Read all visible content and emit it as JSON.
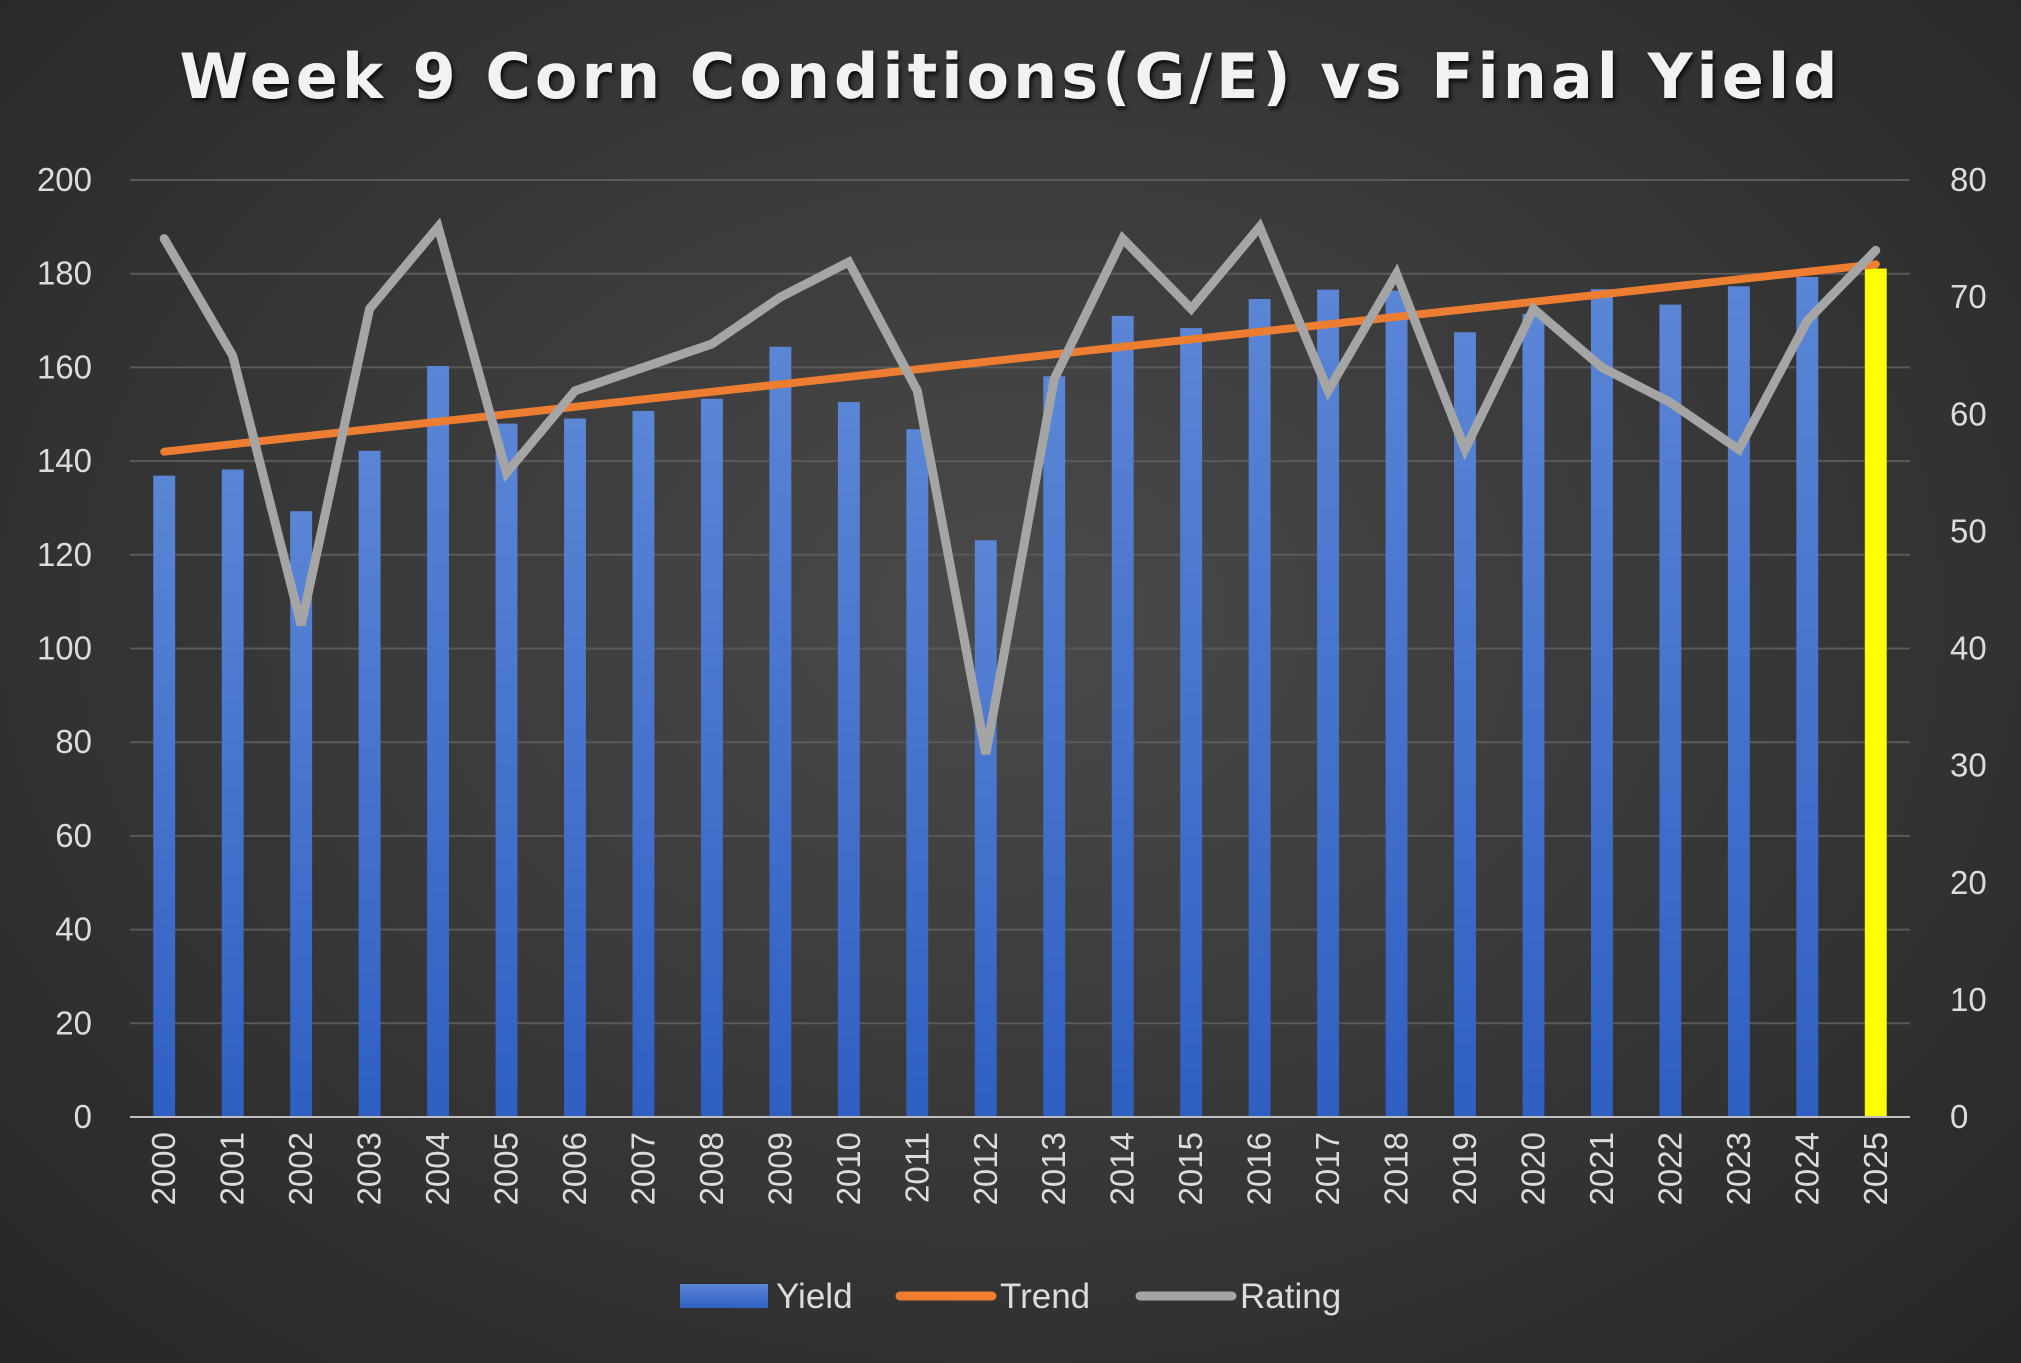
{
  "chart_data": {
    "type": "bar",
    "title": "Week 9 Corn Conditions(G/E) vs Final Yield",
    "xlabel": "",
    "ylabel": "",
    "categories": [
      "2000",
      "2001",
      "2002",
      "2003",
      "2004",
      "2005",
      "2006",
      "2007",
      "2008",
      "2009",
      "2010",
      "2011",
      "2012",
      "2013",
      "2014",
      "2015",
      "2016",
      "2017",
      "2018",
      "2019",
      "2020",
      "2021",
      "2022",
      "2023",
      "2024",
      "2025"
    ],
    "ylim": [
      0,
      200
    ],
    "y2lim": [
      0,
      80
    ],
    "yticks": [
      "0",
      "20",
      "40",
      "60",
      "80",
      "100",
      "120",
      "140",
      "160",
      "180",
      "200"
    ],
    "y2ticks": [
      "0",
      "10",
      "20",
      "30",
      "40",
      "50",
      "60",
      "70",
      "80"
    ],
    "grid": true,
    "legend_position": "bottom",
    "series": [
      {
        "name": "Yield",
        "kind": "bar",
        "axis": "left",
        "color": "#4472c4",
        "highlight": {
          "category": "2025",
          "color": "#ffff00"
        },
        "values": [
          136.9,
          138.2,
          129.3,
          142.2,
          160.3,
          148.0,
          149.1,
          150.7,
          153.3,
          164.4,
          152.6,
          146.8,
          123.1,
          158.1,
          171.0,
          168.4,
          174.6,
          176.6,
          176.4,
          167.5,
          171.4,
          176.7,
          173.4,
          177.3,
          179.3,
          181.1
        ]
      },
      {
        "name": "Trend",
        "kind": "line",
        "axis": "left",
        "color": "#ed7d31",
        "values": [
          142,
          143.6,
          145.2,
          146.8,
          148.4,
          150,
          151.6,
          153.2,
          154.8,
          156.4,
          158,
          159.6,
          161.2,
          162.8,
          164.4,
          166,
          167.6,
          169.2,
          170.8,
          172.4,
          174,
          175.6,
          177.2,
          178.8,
          180.4,
          182
        ]
      },
      {
        "name": "Rating",
        "kind": "line",
        "axis": "right",
        "color": "#a5a5a5",
        "values": [
          75,
          65,
          42,
          69,
          76,
          55,
          62,
          64,
          66,
          70,
          73,
          62,
          31,
          63,
          75,
          69,
          76,
          62,
          72,
          57,
          69,
          64,
          61,
          57,
          68,
          74
        ]
      }
    ]
  }
}
